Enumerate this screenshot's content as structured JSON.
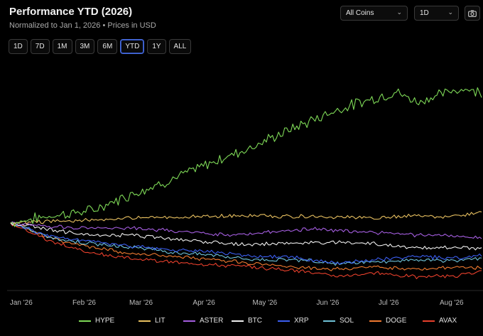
{
  "header": {
    "title": "Performance YTD (2026)",
    "subtitle": "Normalized to Jan 1, 2026 • Prices in USD"
  },
  "controls": {
    "coins_select": "All Coins",
    "interval_select": "1D",
    "camera_icon": "camera-icon"
  },
  "ranges": [
    {
      "label": "1D",
      "active": false
    },
    {
      "label": "7D",
      "active": false
    },
    {
      "label": "1M",
      "active": false
    },
    {
      "label": "3M",
      "active": false
    },
    {
      "label": "6M",
      "active": false
    },
    {
      "label": "YTD",
      "active": true
    },
    {
      "label": "1Y",
      "active": false
    },
    {
      "label": "ALL",
      "active": false
    }
  ],
  "chart_data": {
    "type": "line",
    "title": "Performance YTD (2026)",
    "subtitle": "Normalized to Jan 1, 2026 • Prices in USD",
    "xlabel": "",
    "ylabel": "",
    "x_ticks": [
      "Jan '26",
      "Feb '26",
      "Mar '26",
      "Apr '26",
      "May '26",
      "Jun '26",
      "Jul '26",
      "Aug '26"
    ],
    "x_tick_days": [
      0,
      31,
      59,
      90,
      120,
      151,
      181,
      212
    ],
    "x_range_days": [
      -1,
      232
    ],
    "ylim": [
      -0.5,
      1.3
    ],
    "grid": false,
    "legend": "bottom",
    "series": [
      {
        "name": "HYPE",
        "color": "#7ed957",
        "points": [
          [
            0,
            0
          ],
          [
            20,
            0.06
          ],
          [
            40,
            0.1
          ],
          [
            60,
            0.24
          ],
          [
            80,
            0.36
          ],
          [
            100,
            0.5
          ],
          [
            120,
            0.63
          ],
          [
            140,
            0.78
          ],
          [
            160,
            0.92
          ],
          [
            175,
            1.0
          ],
          [
            190,
            1.07
          ],
          [
            200,
            0.99
          ],
          [
            210,
            1.04
          ],
          [
            222,
            1.1
          ],
          [
            232,
            1.07
          ]
        ]
      },
      {
        "name": "LIT",
        "color": "#e8c060",
        "points": [
          [
            0,
            0
          ],
          [
            30,
            0.02
          ],
          [
            60,
            0.04
          ],
          [
            90,
            0.05
          ],
          [
            120,
            0.06
          ],
          [
            150,
            0.05
          ],
          [
            180,
            0.04
          ],
          [
            200,
            0.06
          ],
          [
            215,
            0.05
          ],
          [
            225,
            0.07
          ],
          [
            232,
            0.09
          ]
        ]
      },
      {
        "name": "ASTER",
        "color": "#a55ee0",
        "points": [
          [
            0,
            0
          ],
          [
            20,
            -0.03
          ],
          [
            40,
            -0.04
          ],
          [
            60,
            -0.04
          ],
          [
            90,
            -0.08
          ],
          [
            110,
            -0.1
          ],
          [
            130,
            -0.07
          ],
          [
            150,
            -0.05
          ],
          [
            175,
            -0.07
          ],
          [
            200,
            -0.1
          ],
          [
            220,
            -0.11
          ],
          [
            232,
            -0.12
          ]
        ]
      },
      {
        "name": "BTC",
        "color": "#f0f0f0",
        "points": [
          [
            0,
            0
          ],
          [
            25,
            -0.07
          ],
          [
            40,
            -0.1
          ],
          [
            60,
            -0.1
          ],
          [
            80,
            -0.13
          ],
          [
            100,
            -0.16
          ],
          [
            120,
            -0.18
          ],
          [
            140,
            -0.16
          ],
          [
            160,
            -0.16
          ],
          [
            180,
            -0.17
          ],
          [
            200,
            -0.2
          ],
          [
            220,
            -0.2
          ],
          [
            232,
            -0.21
          ]
        ]
      },
      {
        "name": "XRP",
        "color": "#3b5ef0",
        "points": [
          [
            0,
            0
          ],
          [
            20,
            -0.11
          ],
          [
            40,
            -0.15
          ],
          [
            60,
            -0.19
          ],
          [
            80,
            -0.22
          ],
          [
            100,
            -0.24
          ],
          [
            120,
            -0.27
          ],
          [
            140,
            -0.28
          ],
          [
            160,
            -0.33
          ],
          [
            180,
            -0.3
          ],
          [
            200,
            -0.27
          ],
          [
            220,
            -0.29
          ],
          [
            232,
            -0.26
          ]
        ]
      },
      {
        "name": "SOL",
        "color": "#6fc2d8",
        "points": [
          [
            0,
            0
          ],
          [
            20,
            -0.12
          ],
          [
            40,
            -0.17
          ],
          [
            60,
            -0.2
          ],
          [
            80,
            -0.24
          ],
          [
            100,
            -0.26
          ],
          [
            120,
            -0.3
          ],
          [
            140,
            -0.3
          ],
          [
            160,
            -0.33
          ],
          [
            180,
            -0.32
          ],
          [
            200,
            -0.3
          ],
          [
            220,
            -0.31
          ],
          [
            232,
            -0.29
          ]
        ]
      },
      {
        "name": "DOGE",
        "color": "#f07a30",
        "points": [
          [
            0,
            0
          ],
          [
            20,
            -0.13
          ],
          [
            40,
            -0.2
          ],
          [
            60,
            -0.25
          ],
          [
            80,
            -0.27
          ],
          [
            100,
            -0.3
          ],
          [
            120,
            -0.33
          ],
          [
            140,
            -0.36
          ],
          [
            160,
            -0.38
          ],
          [
            180,
            -0.36
          ],
          [
            200,
            -0.38
          ],
          [
            220,
            -0.36
          ],
          [
            232,
            -0.37
          ]
        ]
      },
      {
        "name": "AVAX",
        "color": "#e8402c",
        "points": [
          [
            0,
            0
          ],
          [
            20,
            -0.15
          ],
          [
            40,
            -0.25
          ],
          [
            60,
            -0.29
          ],
          [
            80,
            -0.32
          ],
          [
            100,
            -0.34
          ],
          [
            120,
            -0.36
          ],
          [
            140,
            -0.39
          ],
          [
            160,
            -0.43
          ],
          [
            180,
            -0.41
          ],
          [
            200,
            -0.44
          ],
          [
            220,
            -0.43
          ],
          [
            232,
            -0.4
          ]
        ]
      }
    ]
  }
}
